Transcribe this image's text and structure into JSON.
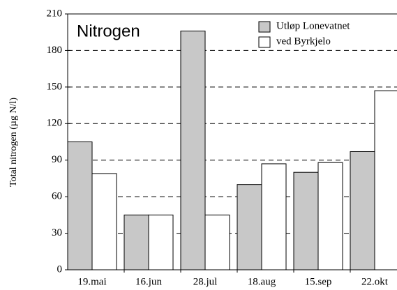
{
  "chart_data": {
    "type": "bar",
    "title": "Nitrogen",
    "y_label": "Total nitrogen (µg N/l)",
    "categories": [
      "19.mai",
      "16.jun",
      "28.jul",
      "18.aug",
      "15.sep",
      "22.okt"
    ],
    "series": [
      {
        "name": "Utløp Lonevatnet",
        "color": "#c8c8c8",
        "values": [
          105,
          45,
          196,
          70,
          80,
          97
        ]
      },
      {
        "name": "ved Byrkjelo",
        "color": "#ffffff",
        "values": [
          79,
          45,
          45,
          87,
          88,
          147
        ]
      }
    ],
    "ylim": [
      0,
      210
    ],
    "yticks": [
      0,
      30,
      60,
      90,
      120,
      150,
      180,
      210
    ],
    "grid": true
  }
}
